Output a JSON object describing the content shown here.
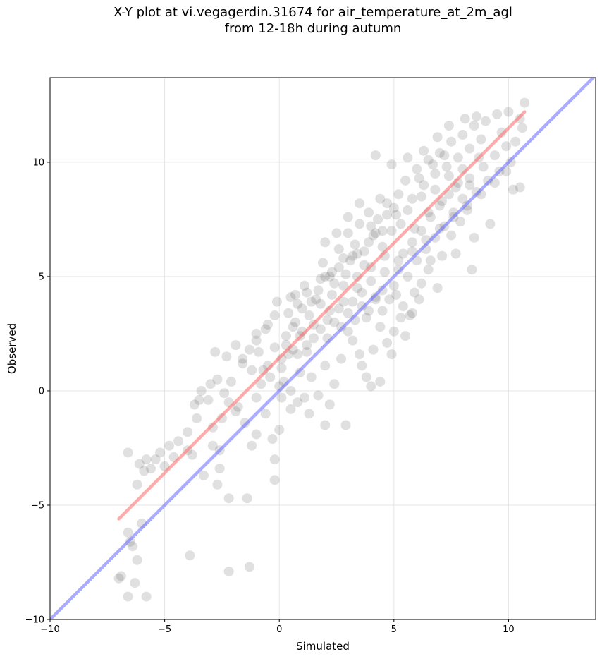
{
  "chart_data": {
    "type": "scatter",
    "title": "X-Y plot at vi.vegagerdin.31674 for air_temperature_at_2m_agl",
    "subtitle": "from 12-18h during autumn",
    "xlabel": "Simulated",
    "ylabel": "Observed",
    "xlim": [
      -10,
      13.8
    ],
    "ylim": [
      -10,
      13.7
    ],
    "xticks": [
      -10,
      -5,
      0,
      5,
      10
    ],
    "yticks": [
      -10,
      -5,
      0,
      5,
      10
    ],
    "xtick_labels": [
      "−10",
      "−5",
      "0",
      "5",
      "10"
    ],
    "ytick_labels": [
      "−10",
      "−5",
      "0",
      "5",
      "10"
    ],
    "grid": true,
    "point_color": "#404040",
    "series": [
      {
        "values": [
          [
            -7.0,
            -8.2
          ],
          [
            -6.6,
            -9.0
          ],
          [
            -6.9,
            -8.1
          ],
          [
            -6.6,
            -6.2
          ],
          [
            -6.5,
            -6.6
          ],
          [
            -6.4,
            -6.8
          ],
          [
            -6.2,
            -7.4
          ],
          [
            -6.0,
            -5.8
          ],
          [
            -5.8,
            -9.0
          ],
          [
            -6.3,
            -8.4
          ],
          [
            -3.9,
            -7.2
          ],
          [
            -2.2,
            -7.9
          ],
          [
            -1.3,
            -7.7
          ],
          [
            -6.6,
            -2.7
          ],
          [
            -6.1,
            -3.2
          ],
          [
            -5.8,
            -3.0
          ],
          [
            -5.6,
            -3.4
          ],
          [
            -5.2,
            -2.7
          ],
          [
            -4.8,
            -2.4
          ],
          [
            -4.4,
            -2.2
          ],
          [
            -4.0,
            -1.8
          ],
          [
            -3.7,
            -0.6
          ],
          [
            -3.5,
            -0.4
          ],
          [
            -3.8,
            -2.8
          ],
          [
            -3.3,
            -3.7
          ],
          [
            -2.9,
            -1.6
          ],
          [
            -2.6,
            -2.6
          ],
          [
            -3.0,
            0.3
          ],
          [
            -2.7,
            0.5
          ],
          [
            -2.4,
            -0.1
          ],
          [
            -2.1,
            0.4
          ],
          [
            -1.8,
            -0.7
          ],
          [
            -1.5,
            -1.4
          ],
          [
            -1.2,
            -2.4
          ],
          [
            -1.0,
            -0.3
          ],
          [
            -0.6,
            -1.0
          ],
          [
            -0.3,
            -2.1
          ],
          [
            0.0,
            -1.7
          ],
          [
            -0.2,
            -3.0
          ],
          [
            -2.2,
            -4.7
          ],
          [
            -1.4,
            -4.7
          ],
          [
            -2.7,
            -4.1
          ],
          [
            -0.2,
            -3.9
          ],
          [
            -2.8,
            1.7
          ],
          [
            -2.3,
            1.5
          ],
          [
            -1.9,
            2.0
          ],
          [
            -1.6,
            1.2
          ],
          [
            -1.3,
            1.8
          ],
          [
            -1.0,
            2.2
          ],
          [
            -0.7,
            0.9
          ],
          [
            -0.5,
            2.9
          ],
          [
            -0.2,
            3.3
          ],
          [
            0.1,
            1.4
          ],
          [
            0.3,
            2.4
          ],
          [
            0.6,
            2.8
          ],
          [
            0.8,
            1.6
          ],
          [
            1.0,
            3.6
          ],
          [
            1.2,
            2.0
          ],
          [
            0.2,
            0.4
          ],
          [
            0.5,
            0.0
          ],
          [
            0.8,
            -0.5
          ],
          [
            1.1,
            -0.3
          ],
          [
            1.4,
            0.6
          ],
          [
            1.7,
            -0.2
          ],
          [
            2.0,
            1.1
          ],
          [
            2.2,
            -0.6
          ],
          [
            2.4,
            0.3
          ],
          [
            1.3,
            -1.0
          ],
          [
            2.0,
            -1.5
          ],
          [
            2.9,
            -1.5
          ],
          [
            0.5,
            -0.8
          ],
          [
            0.1,
            -0.3
          ],
          [
            0.9,
            0.8
          ],
          [
            1.5,
            2.9
          ],
          [
            1.8,
            3.8
          ],
          [
            2.1,
            3.1
          ],
          [
            2.3,
            4.2
          ],
          [
            2.6,
            3.6
          ],
          [
            2.8,
            4.6
          ],
          [
            3.0,
            2.6
          ],
          [
            3.2,
            3.9
          ],
          [
            3.4,
            5.0
          ],
          [
            3.6,
            4.3
          ],
          [
            3.8,
            3.2
          ],
          [
            4.0,
            5.4
          ],
          [
            4.2,
            4.1
          ],
          [
            4.4,
            2.8
          ],
          [
            4.6,
            5.9
          ],
          [
            1.9,
            5.6
          ],
          [
            2.3,
            5.2
          ],
          [
            2.6,
            6.2
          ],
          [
            2.8,
            5.8
          ],
          [
            3.0,
            6.9
          ],
          [
            3.3,
            6.4
          ],
          [
            3.5,
            7.3
          ],
          [
            3.7,
            6.1
          ],
          [
            3.9,
            7.8
          ],
          [
            4.1,
            6.8
          ],
          [
            4.3,
            7.5
          ],
          [
            4.5,
            6.3
          ],
          [
            4.7,
            8.2
          ],
          [
            4.9,
            7.0
          ],
          [
            5.1,
            7.7
          ],
          [
            3.2,
            2.2
          ],
          [
            3.5,
            1.6
          ],
          [
            3.8,
            0.6
          ],
          [
            4.1,
            1.8
          ],
          [
            4.4,
            0.4
          ],
          [
            4.7,
            2.1
          ],
          [
            5.0,
            2.6
          ],
          [
            5.3,
            3.2
          ],
          [
            5.5,
            2.4
          ],
          [
            4.0,
            0.2
          ],
          [
            2.7,
            1.4
          ],
          [
            3.6,
            1.1
          ],
          [
            4.9,
            1.6
          ],
          [
            5.8,
            3.4
          ],
          [
            6.1,
            4.0
          ],
          [
            5.0,
            4.6
          ],
          [
            5.2,
            5.3
          ],
          [
            5.4,
            6.0
          ],
          [
            5.6,
            5.0
          ],
          [
            5.8,
            6.5
          ],
          [
            6.0,
            5.7
          ],
          [
            6.2,
            7.0
          ],
          [
            6.4,
            6.2
          ],
          [
            6.6,
            7.6
          ],
          [
            6.8,
            6.7
          ],
          [
            7.0,
            8.1
          ],
          [
            7.2,
            7.2
          ],
          [
            7.4,
            8.6
          ],
          [
            7.6,
            7.8
          ],
          [
            7.8,
            9.1
          ],
          [
            5.2,
            8.6
          ],
          [
            5.5,
            9.2
          ],
          [
            5.8,
            8.4
          ],
          [
            6.0,
            9.7
          ],
          [
            6.3,
            9.0
          ],
          [
            6.5,
            10.1
          ],
          [
            6.8,
            9.5
          ],
          [
            7.0,
            10.4
          ],
          [
            7.3,
            9.8
          ],
          [
            7.5,
            10.9
          ],
          [
            7.8,
            10.2
          ],
          [
            8.0,
            11.2
          ],
          [
            8.3,
            10.6
          ],
          [
            8.5,
            11.6
          ],
          [
            8.8,
            11.0
          ],
          [
            4.2,
            10.3
          ],
          [
            4.9,
            9.9
          ],
          [
            5.6,
            10.2
          ],
          [
            6.3,
            10.5
          ],
          [
            6.9,
            11.1
          ],
          [
            7.4,
            11.6
          ],
          [
            8.1,
            11.9
          ],
          [
            8.6,
            12.0
          ],
          [
            9.0,
            11.8
          ],
          [
            9.5,
            12.1
          ],
          [
            10.0,
            12.2
          ],
          [
            10.5,
            11.9
          ],
          [
            10.7,
            12.6
          ],
          [
            10.6,
            11.5
          ],
          [
            9.7,
            11.3
          ],
          [
            8.0,
            8.4
          ],
          [
            8.3,
            9.3
          ],
          [
            8.6,
            8.7
          ],
          [
            8.9,
            9.8
          ],
          [
            9.1,
            9.2
          ],
          [
            9.4,
            10.3
          ],
          [
            9.6,
            9.6
          ],
          [
            9.9,
            10.7
          ],
          [
            10.1,
            10.0
          ],
          [
            10.3,
            10.9
          ],
          [
            9.2,
            7.3
          ],
          [
            10.2,
            8.8
          ],
          [
            10.5,
            8.9
          ],
          [
            8.4,
            5.3
          ],
          [
            6.9,
            4.5
          ],
          [
            6.2,
            4.7
          ],
          [
            6.5,
            5.3
          ],
          [
            7.1,
            5.9
          ],
          [
            7.5,
            6.8
          ],
          [
            7.9,
            7.4
          ],
          [
            8.5,
            6.7
          ],
          [
            8.2,
            7.9
          ],
          [
            7.7,
            6.0
          ],
          [
            6.6,
            5.7
          ],
          [
            5.9,
            4.3
          ],
          [
            5.4,
            3.7
          ],
          [
            5.7,
            3.3
          ],
          [
            4.8,
            4.0
          ],
          [
            4.5,
            3.5
          ],
          [
            5.1,
            4.2
          ],
          [
            -0.1,
            3.9
          ],
          [
            0.4,
            3.4
          ],
          [
            0.7,
            4.2
          ],
          [
            1.1,
            4.6
          ],
          [
            1.4,
            3.9
          ],
          [
            1.7,
            4.4
          ],
          [
            2.0,
            5.0
          ],
          [
            2.4,
            4.7
          ],
          [
            2.6,
            5.4
          ],
          [
            2.9,
            5.1
          ],
          [
            3.1,
            5.7
          ],
          [
            3.4,
            6.0
          ],
          [
            3.7,
            5.5
          ],
          [
            3.9,
            6.5
          ],
          [
            4.2,
            6.9
          ],
          [
            0.3,
            2.0
          ],
          [
            0.6,
            1.8
          ],
          [
            0.9,
            2.4
          ],
          [
            1.2,
            1.7
          ],
          [
            1.5,
            2.3
          ],
          [
            1.8,
            2.7
          ],
          [
            2.1,
            2.3
          ],
          [
            2.4,
            3.0
          ],
          [
            2.7,
            2.8
          ],
          [
            3.0,
            3.4
          ],
          [
            3.3,
            3.1
          ],
          [
            3.6,
            3.7
          ],
          [
            3.9,
            3.5
          ],
          [
            4.2,
            4.0
          ],
          [
            4.5,
            4.4
          ],
          [
            -1.6,
            1.4
          ],
          [
            -1.2,
            0.9
          ],
          [
            -0.9,
            1.7
          ],
          [
            -0.5,
            1.1
          ],
          [
            -0.2,
            1.9
          ],
          [
            0.1,
            1.0
          ],
          [
            0.4,
            1.6
          ],
          [
            -0.8,
            0.3
          ],
          [
            -0.4,
            0.6
          ],
          [
            0.0,
            0.2
          ],
          [
            -1.0,
            2.5
          ],
          [
            -0.6,
            2.7
          ],
          [
            0.7,
            3.0
          ],
          [
            1.0,
            2.6
          ],
          [
            1.3,
            3.3
          ],
          [
            -3.4,
            0.0
          ],
          [
            -3.1,
            -0.4
          ],
          [
            -2.5,
            -1.2
          ],
          [
            -2.2,
            -0.5
          ],
          [
            -1.9,
            -0.9
          ],
          [
            -3.6,
            -1.2
          ],
          [
            -4.0,
            -2.6
          ],
          [
            -4.6,
            -2.9
          ],
          [
            -5.0,
            -3.3
          ],
          [
            -5.4,
            -3.0
          ],
          [
            -5.9,
            -3.5
          ],
          [
            -6.2,
            -4.1
          ],
          [
            -2.9,
            -2.4
          ],
          [
            -2.6,
            -3.4
          ],
          [
            -1.0,
            -1.9
          ],
          [
            4.4,
            8.4
          ],
          [
            4.7,
            7.7
          ],
          [
            5.0,
            8.0
          ],
          [
            5.3,
            7.3
          ],
          [
            5.6,
            7.9
          ],
          [
            5.9,
            7.1
          ],
          [
            6.2,
            8.5
          ],
          [
            6.5,
            7.8
          ],
          [
            6.8,
            8.8
          ],
          [
            7.1,
            8.3
          ],
          [
            7.4,
            9.4
          ],
          [
            7.7,
            8.9
          ],
          [
            8.0,
            9.7
          ],
          [
            8.3,
            9.0
          ],
          [
            8.7,
            10.2
          ],
          [
            1.6,
            4.0
          ],
          [
            2.2,
            3.5
          ],
          [
            2.8,
            3.9
          ],
          [
            3.4,
            4.5
          ],
          [
            4.0,
            4.8
          ],
          [
            4.6,
            5.2
          ],
          [
            5.2,
            5.7
          ],
          [
            5.8,
            6.1
          ],
          [
            6.4,
            6.6
          ],
          [
            7.0,
            7.1
          ],
          [
            7.6,
            7.6
          ],
          [
            8.2,
            8.1
          ],
          [
            8.8,
            8.6
          ],
          [
            9.4,
            9.1
          ],
          [
            9.9,
            9.6
          ],
          [
            2.0,
            6.5
          ],
          [
            2.5,
            6.9
          ],
          [
            3.0,
            7.6
          ],
          [
            3.5,
            8.2
          ],
          [
            4.0,
            7.2
          ],
          [
            4.5,
            7.0
          ],
          [
            3.2,
            5.9
          ],
          [
            2.2,
            5.0
          ],
          [
            1.8,
            4.9
          ],
          [
            1.2,
            4.3
          ],
          [
            0.8,
            3.8
          ],
          [
            0.5,
            4.1
          ],
          [
            6.1,
            9.3
          ],
          [
            6.7,
            9.9
          ],
          [
            7.2,
            10.3
          ]
        ]
      }
    ],
    "lines": [
      {
        "color": "#ff6666",
        "x": [
          -7.0,
          10.7
        ],
        "y": [
          -5.6,
          12.2
        ]
      },
      {
        "color": "#6666ff",
        "x": [
          -10.0,
          13.8
        ],
        "y": [
          -10.0,
          13.8
        ]
      }
    ]
  }
}
